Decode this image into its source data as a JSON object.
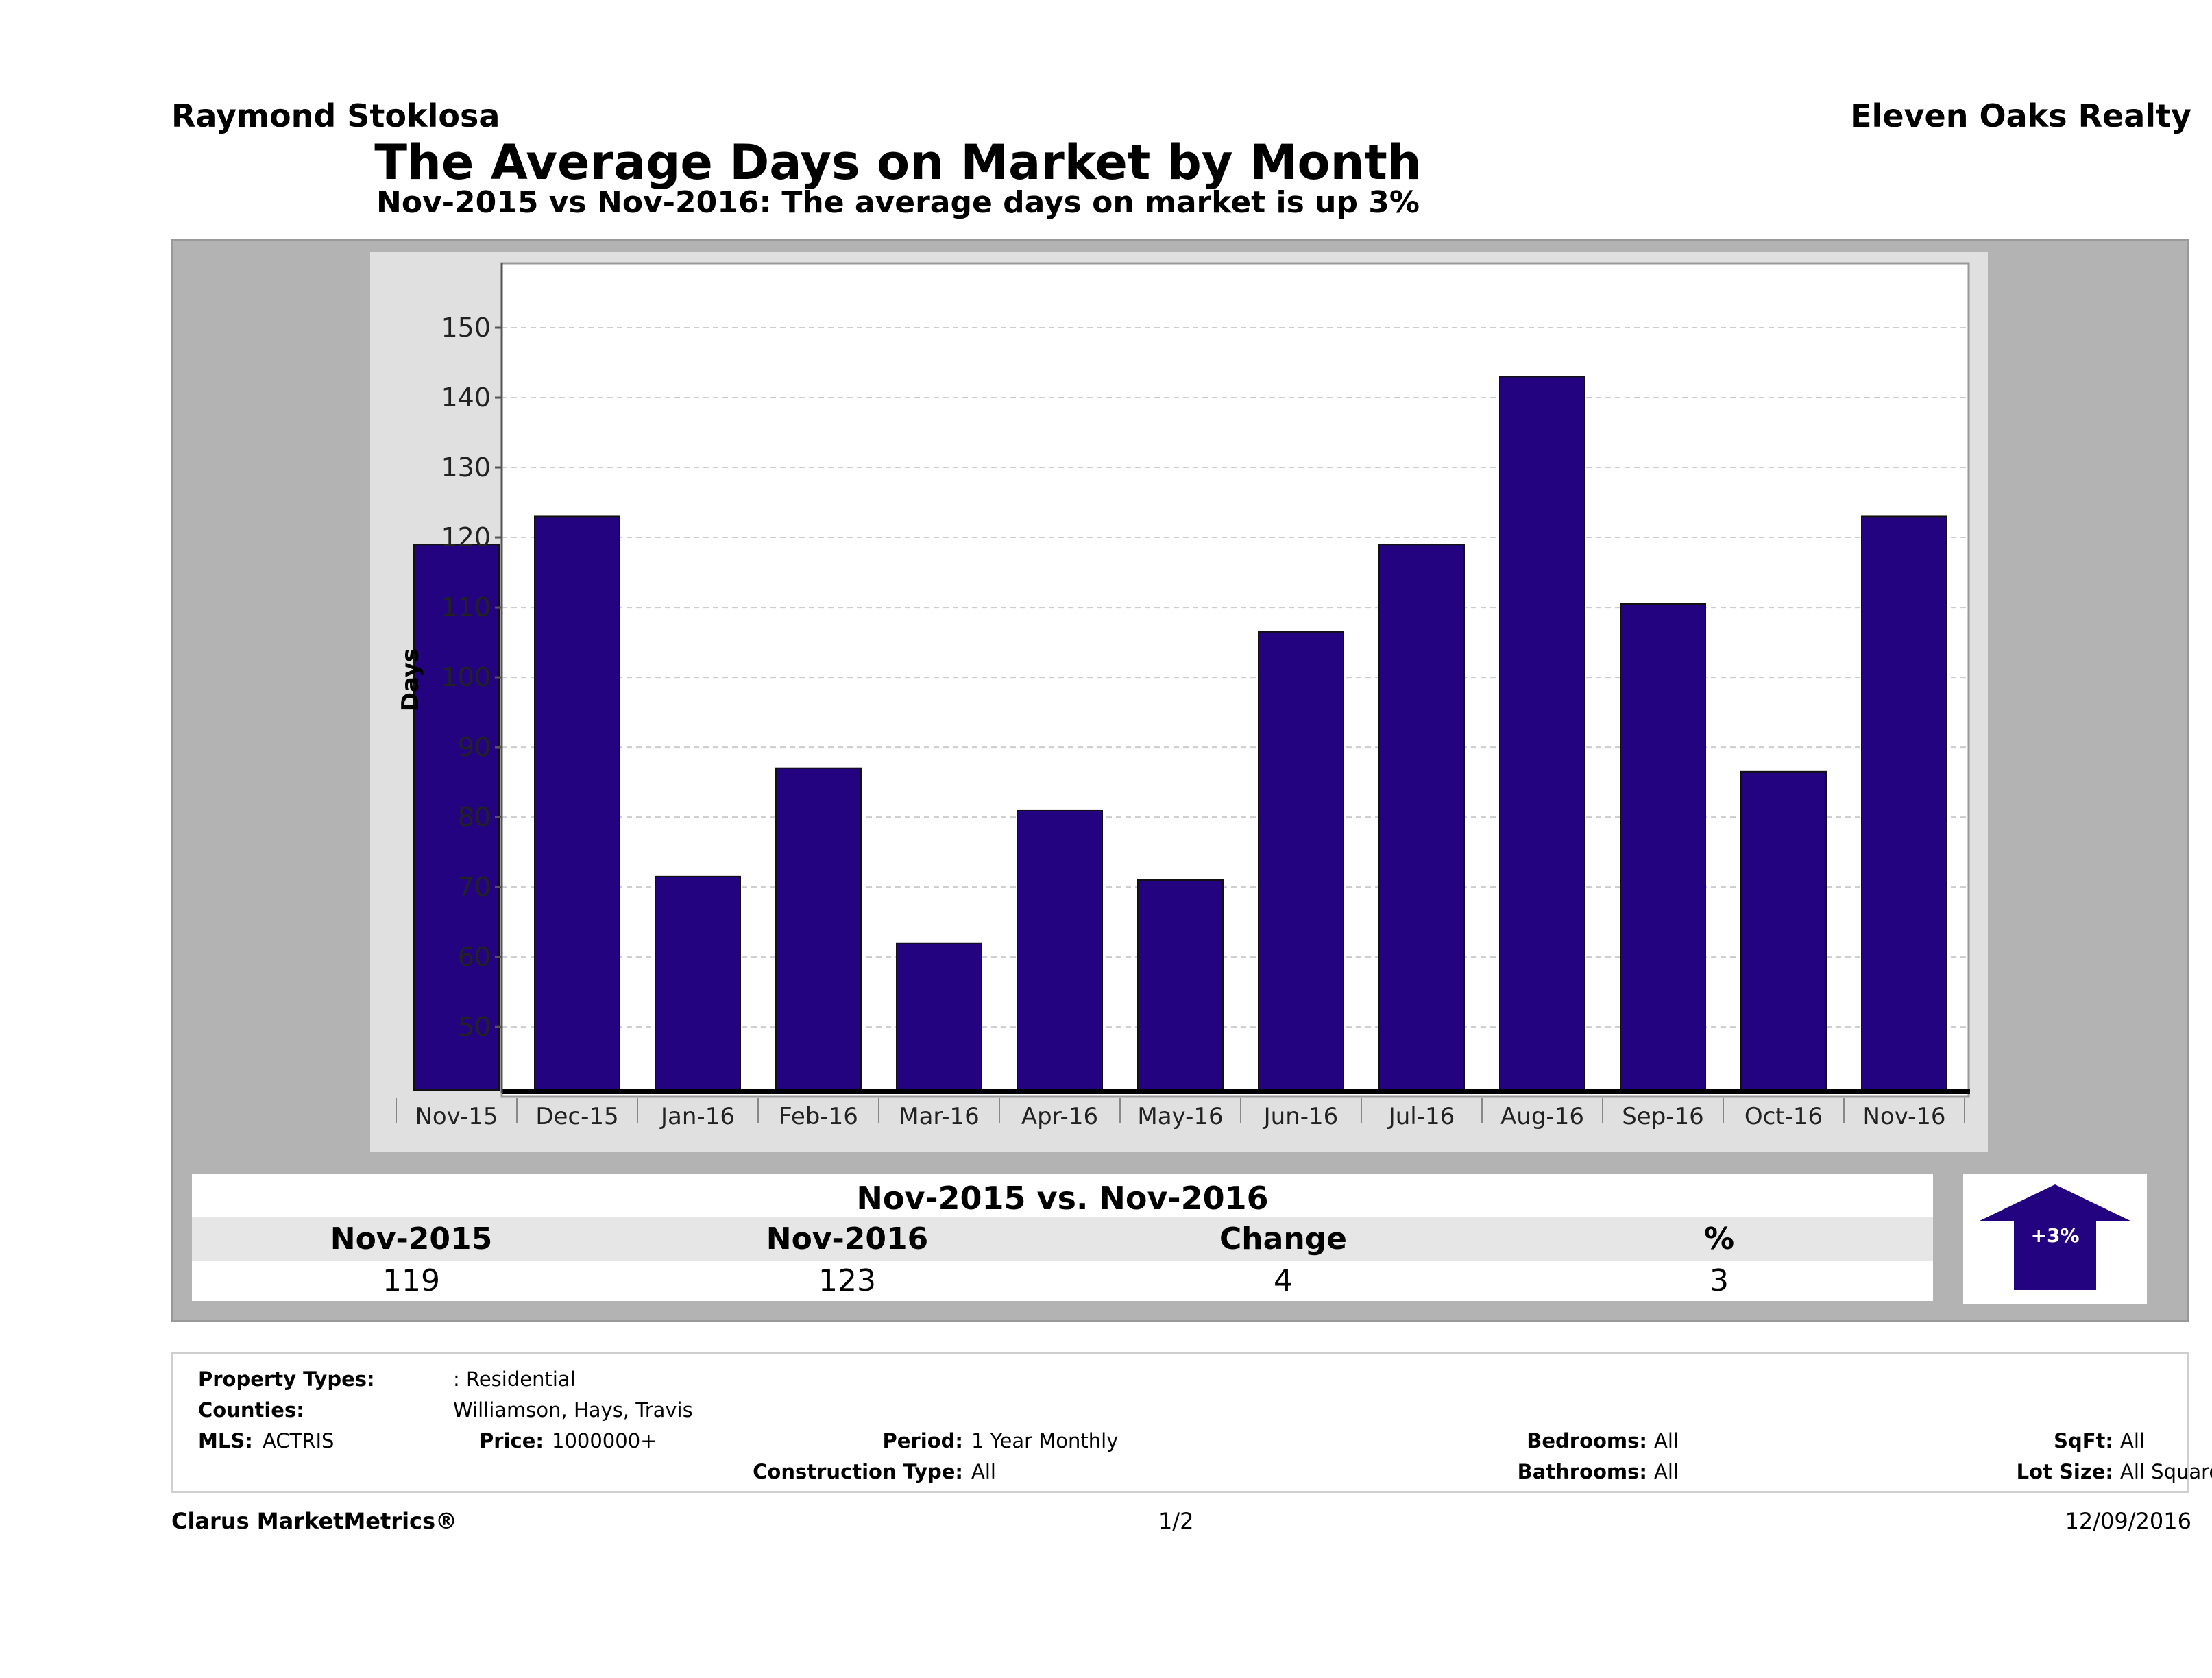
{
  "header": {
    "agent_name": "Raymond Stoklosa",
    "brokerage": "Eleven Oaks Realty",
    "title": "The Average Days on Market by Month",
    "subtitle": "Nov-2015 vs Nov-2016: The average days on market is up 3%"
  },
  "chart_data": {
    "type": "bar",
    "categories": [
      "Nov-15",
      "Dec-15",
      "Jan-16",
      "Feb-16",
      "Mar-16",
      "Apr-16",
      "May-16",
      "Jun-16",
      "Jul-16",
      "Aug-16",
      "Sep-16",
      "Oct-16",
      "Nov-16"
    ],
    "values": [
      119,
      123,
      71.5,
      87,
      62,
      81,
      71,
      106.5,
      119,
      143,
      110.5,
      86.5,
      123
    ],
    "ylabel": "Days",
    "xlabel": "",
    "ylim": [
      41,
      150
    ],
    "yticks": [
      50,
      60,
      70,
      80,
      90,
      100,
      110,
      120,
      130,
      140,
      150
    ],
    "grid": true,
    "bar_color": "#23037f"
  },
  "summary": {
    "title": "Nov-2015 vs. Nov-2016",
    "headers": [
      "Nov-2015",
      "Nov-2016",
      "Change",
      "%"
    ],
    "values": [
      "119",
      "123",
      "4",
      "3"
    ],
    "trend_label": "+3%",
    "trend_color": "#23037f"
  },
  "criteria": {
    "property_types_label": "Property Types:",
    "property_types_value": ": Residential",
    "counties_label": "Counties:",
    "counties_value": "Williamson, Hays, Travis",
    "mls_label": "MLS:",
    "mls_value": "ACTRIS",
    "price_label": "Price:",
    "price_value": "1000000+",
    "period_label": "Period:",
    "period_value": "1 Year Monthly",
    "construction_label": "Construction Type:",
    "construction_value": "All",
    "bedrooms_label": "Bedrooms:",
    "bedrooms_value": "All",
    "bathrooms_label": "Bathrooms:",
    "bathrooms_value": "All",
    "sqft_label": "SqFt:",
    "sqft_value": "All",
    "lot_size_label": "Lot Size:",
    "lot_size_value": "All Square Footage"
  },
  "footer": {
    "brand": "Clarus MarketMetrics®",
    "page": "1/2",
    "date": "12/09/2016"
  }
}
